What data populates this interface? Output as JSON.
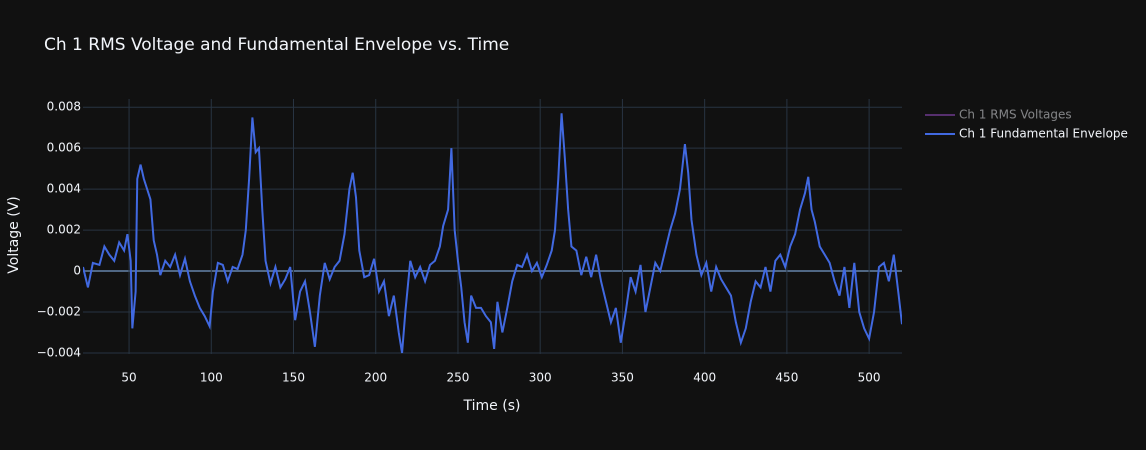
{
  "chart_data": {
    "type": "line",
    "title": "Ch 1 RMS Voltage and Fundamental Envelope vs. Time",
    "x_label": "Time (s)",
    "y_label": "Voltage (V)",
    "xlim": [
      22,
      520
    ],
    "ylim": [
      -0.00405,
      0.0084
    ],
    "xticks": [
      50,
      100,
      150,
      200,
      250,
      300,
      350,
      400,
      450,
      500
    ],
    "yticks": [
      {
        "value": -0.004,
        "label": "−0.004"
      },
      {
        "value": -0.002,
        "label": "−0.002"
      },
      0,
      0.002,
      0.004,
      0.006,
      0.008
    ],
    "grid": true,
    "legend": "right",
    "x": [
      22,
      25,
      28,
      32,
      35,
      38,
      41,
      44,
      47,
      49,
      51,
      52,
      54,
      55,
      57,
      59,
      61,
      63,
      65,
      67,
      69,
      72,
      75,
      78,
      81,
      84,
      87,
      90,
      93,
      96,
      99,
      101,
      104,
      107,
      110,
      113,
      116,
      119,
      121,
      123,
      125,
      127,
      129,
      131,
      133,
      136,
      139,
      142,
      145,
      148,
      151,
      154,
      157,
      160,
      163,
      166,
      169,
      172,
      175,
      178,
      181,
      184,
      186,
      188,
      190,
      193,
      196,
      199,
      202,
      205,
      208,
      211,
      214,
      216,
      218,
      221,
      224,
      227,
      230,
      233,
      236,
      239,
      241,
      244,
      246,
      248,
      250,
      252,
      254,
      256,
      258,
      261,
      264,
      267,
      270,
      272,
      274,
      277,
      280,
      283,
      286,
      289,
      292,
      295,
      298,
      301,
      304,
      307,
      309,
      311,
      313,
      315,
      317,
      319,
      322,
      325,
      328,
      331,
      334,
      337,
      340,
      343,
      346,
      349,
      352,
      355,
      358,
      361,
      364,
      367,
      370,
      373,
      376,
      379,
      382,
      385,
      388,
      390,
      392,
      395,
      398,
      401,
      404,
      407,
      410,
      413,
      416,
      419,
      422,
      425,
      428,
      431,
      434,
      437,
      440,
      443,
      446,
      449,
      452,
      455,
      458,
      461,
      463,
      465,
      467,
      470,
      473,
      476,
      479,
      482,
      485,
      488,
      491,
      494,
      497,
      500,
      503,
      506,
      509,
      512,
      515,
      518,
      520
    ],
    "series": [
      {
        "name": "Ch 1 RMS Voltages",
        "color": "#9b4dca",
        "visible": "legendonly"
      },
      {
        "name": "Ch 1 Fundamental Envelope",
        "color": "#4169e1",
        "values": [
          0.0002,
          -0.0008,
          0.0004,
          0.0003,
          0.0012,
          0.0008,
          0.0005,
          0.0014,
          0.001,
          0.0018,
          0.0005,
          -0.0028,
          -0.001,
          0.0045,
          0.0052,
          0.0045,
          0.004,
          0.0035,
          0.0015,
          0.0008,
          -0.0002,
          0.0005,
          0.0002,
          0.0008,
          -0.0002,
          0.0006,
          -0.0005,
          -0.0012,
          -0.0018,
          -0.0022,
          -0.0027,
          -0.001,
          0.0004,
          0.0003,
          -0.0005,
          0.0002,
          0.0001,
          0.0008,
          0.002,
          0.0045,
          0.0075,
          0.0058,
          0.006,
          0.003,
          0.0005,
          -0.0006,
          0.0002,
          -0.0008,
          -0.0004,
          0.0002,
          -0.0024,
          -0.001,
          -0.0005,
          -0.002,
          -0.0037,
          -0.0012,
          0.0004,
          -0.0004,
          0.0002,
          0.0005,
          0.0018,
          0.004,
          0.0048,
          0.0036,
          0.001,
          -0.0003,
          -0.0002,
          0.0006,
          -0.001,
          -0.0005,
          -0.0022,
          -0.0012,
          -0.003,
          -0.004,
          -0.002,
          0.0005,
          -0.0003,
          0.0002,
          -0.0005,
          0.0003,
          0.0005,
          0.0012,
          0.0022,
          0.003,
          0.006,
          0.002,
          0.0005,
          -0.0008,
          -0.0025,
          -0.0035,
          -0.0012,
          -0.0018,
          -0.0018,
          -0.0022,
          -0.0025,
          -0.0038,
          -0.0015,
          -0.003,
          -0.0018,
          -0.0005,
          0.0003,
          0.0002,
          0.0008,
          0,
          0.0004,
          -0.0003,
          0.0003,
          0.001,
          0.002,
          0.0045,
          0.0077,
          0.0055,
          0.003,
          0.0012,
          0.001,
          -0.0002,
          0.0007,
          -0.0003,
          0.0008,
          -0.0005,
          -0.0015,
          -0.0025,
          -0.0018,
          -0.0035,
          -0.002,
          -0.0003,
          -0.001,
          0.0003,
          -0.002,
          -0.0008,
          0.0004,
          0,
          0.001,
          0.002,
          0.0028,
          0.004,
          0.0062,
          0.0048,
          0.0025,
          0.0008,
          -0.0002,
          0.0004,
          -0.001,
          0.0002,
          -0.0004,
          -0.0008,
          -0.0012,
          -0.0025,
          -0.0035,
          -0.0028,
          -0.0015,
          -0.0005,
          -0.0008,
          0.0002,
          -0.001,
          0.0005,
          0.0008,
          0.0002,
          0.0012,
          0.0018,
          0.003,
          0.0038,
          0.0046,
          0.003,
          0.0024,
          0.0012,
          0.0008,
          0.0004,
          -0.0005,
          -0.0012,
          0.0002,
          -0.0018,
          0.0004,
          -0.002,
          -0.0028,
          -0.0033,
          -0.002,
          0.0002,
          0.0004,
          -0.0005,
          0.0008,
          -0.0012,
          -0.0026
        ]
      }
    ]
  }
}
